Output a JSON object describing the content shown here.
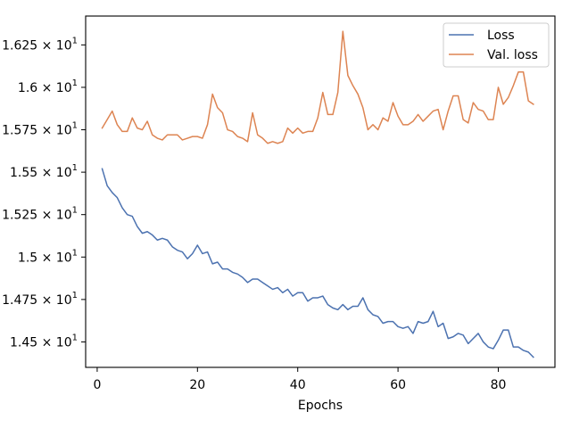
{
  "chart_data": {
    "type": "line",
    "title": "",
    "xlabel": "Epochs",
    "ylabel": "",
    "xlim": [
      -2.3,
      91.3
    ],
    "ylim": [
      14.35,
      16.42
    ],
    "xticks": [
      0,
      20,
      40,
      60,
      80
    ],
    "xtick_labels": [
      "0",
      "20",
      "40",
      "60",
      "80"
    ],
    "yticks": [
      14.5,
      14.75,
      15.0,
      15.25,
      15.5,
      15.75,
      16.0,
      16.25
    ],
    "ytick_labels": [
      {
        "mantissa": "1.45 × 10",
        "exponent": "1"
      },
      {
        "mantissa": "1.475 × 10",
        "exponent": "1"
      },
      {
        "mantissa": "1.5 × 10",
        "exponent": "1"
      },
      {
        "mantissa": "1.525 × 10",
        "exponent": "1"
      },
      {
        "mantissa": "1.55 × 10",
        "exponent": "1"
      },
      {
        "mantissa": "1.575 × 10",
        "exponent": "1"
      },
      {
        "mantissa": "1.6 × 10",
        "exponent": "1"
      },
      {
        "mantissa": "1.625 × 10",
        "exponent": "1"
      }
    ],
    "grid": false,
    "legend_position": "top-right",
    "series": [
      {
        "name": "Loss",
        "color": "#4c72b0",
        "x_start": 1,
        "values": [
          15.52,
          15.42,
          15.38,
          15.35,
          15.29,
          15.25,
          15.24,
          15.18,
          15.14,
          15.15,
          15.13,
          15.1,
          15.11,
          15.1,
          15.06,
          15.04,
          15.03,
          14.99,
          15.02,
          15.07,
          15.02,
          15.03,
          14.96,
          14.97,
          14.93,
          14.93,
          14.91,
          14.9,
          14.88,
          14.85,
          14.87,
          14.87,
          14.85,
          14.83,
          14.81,
          14.82,
          14.79,
          14.81,
          14.77,
          14.79,
          14.79,
          14.74,
          14.76,
          14.76,
          14.77,
          14.72,
          14.7,
          14.69,
          14.72,
          14.69,
          14.71,
          14.71,
          14.76,
          14.69,
          14.66,
          14.65,
          14.61,
          14.62,
          14.62,
          14.59,
          14.58,
          14.59,
          14.55,
          14.62,
          14.61,
          14.62,
          14.68,
          14.59,
          14.61,
          14.52,
          14.53,
          14.55,
          14.54,
          14.49,
          14.52,
          14.55,
          14.5,
          14.47,
          14.46,
          14.51,
          14.57,
          14.57,
          14.47,
          14.47,
          14.45,
          14.44,
          14.41
        ]
      },
      {
        "name": "Val. loss",
        "color": "#dd8452",
        "x_start": 1,
        "values": [
          15.76,
          15.81,
          15.86,
          15.78,
          15.74,
          15.74,
          15.82,
          15.76,
          15.75,
          15.8,
          15.72,
          15.7,
          15.69,
          15.72,
          15.72,
          15.72,
          15.69,
          15.7,
          15.71,
          15.71,
          15.7,
          15.78,
          15.96,
          15.88,
          15.85,
          15.75,
          15.74,
          15.71,
          15.7,
          15.68,
          15.85,
          15.72,
          15.7,
          15.67,
          15.68,
          15.67,
          15.68,
          15.76,
          15.73,
          15.76,
          15.73,
          15.74,
          15.74,
          15.82,
          15.97,
          15.84,
          15.84,
          15.97,
          16.33,
          16.07,
          16.01,
          15.96,
          15.88,
          15.75,
          15.78,
          15.75,
          15.82,
          15.8,
          15.91,
          15.83,
          15.78,
          15.78,
          15.8,
          15.84,
          15.8,
          15.83,
          15.86,
          15.87,
          15.75,
          15.86,
          15.95,
          15.95,
          15.81,
          15.79,
          15.91,
          15.87,
          15.86,
          15.81,
          15.81,
          16.0,
          15.9,
          15.94,
          16.01,
          16.09,
          16.09,
          15.92,
          15.9
        ]
      }
    ]
  }
}
